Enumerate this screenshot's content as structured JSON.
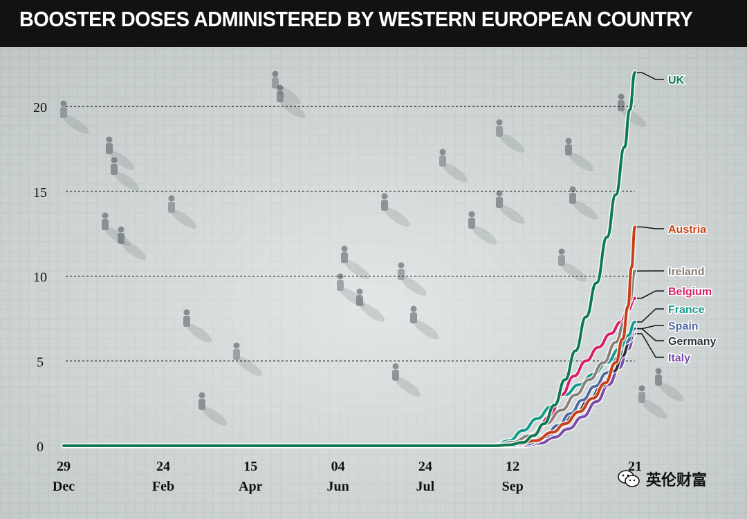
{
  "watermark": {
    "text": "英伦财富"
  },
  "chart_data": {
    "type": "line",
    "title": "BOOSTER DOSES ADMINISTERED BY WESTERN EUROPEAN COUNTRY",
    "xlabel": "",
    "ylabel": "",
    "ylim": [
      0,
      22
    ],
    "xlim": [
      "2020-12-29",
      "2021-11-21"
    ],
    "yticks": [
      0,
      5,
      10,
      15,
      20
    ],
    "xticks": [
      {
        "day": [
          "29"
        ],
        "label": "Dec",
        "date": "2020-12-29"
      },
      {
        "day": [
          "24"
        ],
        "label": "Feb",
        "date": "2021-02-24"
      },
      {
        "day": [
          "15"
        ],
        "label": "Apr",
        "date": "2021-04-15"
      },
      {
        "day": [
          "04"
        ],
        "label": "Jun",
        "date": "2021-06-04"
      },
      {
        "day": [
          "24"
        ],
        "label": "Jul",
        "date": "2021-07-24"
      },
      {
        "day": [
          "12"
        ],
        "label": "Sep",
        "date": "2021-09-12"
      },
      {
        "day": [
          "21"
        ],
        "label": "",
        "date": "2021-11-21"
      }
    ],
    "grid": "dotted horizontal",
    "legend": "inline labels at right end of lines",
    "series": [
      {
        "name": "UK",
        "color": "#0d7a52",
        "x": [
          "2020-12-29",
          "2021-09-01",
          "2021-09-10",
          "2021-09-18",
          "2021-09-24",
          "2021-09-30",
          "2021-10-06",
          "2021-10-12",
          "2021-10-18",
          "2021-10-24",
          "2021-10-30",
          "2021-11-05",
          "2021-11-10",
          "2021-11-15",
          "2021-11-18",
          "2021-11-21"
        ],
        "y": [
          0,
          0,
          0.05,
          0.2,
          0.6,
          1.3,
          2.4,
          3.9,
          5.6,
          7.6,
          9.6,
          12.3,
          14.8,
          17.6,
          19.8,
          22
        ]
      },
      {
        "name": "Austria",
        "color": "#c8401a",
        "x": [
          "2020-12-29",
          "2021-09-05",
          "2021-09-15",
          "2021-09-25",
          "2021-10-05",
          "2021-10-12",
          "2021-10-20",
          "2021-10-28",
          "2021-11-04",
          "2021-11-10",
          "2021-11-14",
          "2021-11-17",
          "2021-11-19",
          "2021-11-21"
        ],
        "y": [
          0,
          0,
          0.1,
          0.3,
          0.8,
          1.3,
          2.0,
          2.8,
          3.7,
          4.9,
          6.3,
          8.2,
          10.5,
          12.9
        ]
      },
      {
        "name": "Ireland",
        "color": "#8a7f7a",
        "x": [
          "2020-12-29",
          "2021-09-01",
          "2021-09-12",
          "2021-09-22",
          "2021-10-01",
          "2021-10-10",
          "2021-10-18",
          "2021-10-26",
          "2021-11-03",
          "2021-11-10",
          "2021-11-15",
          "2021-11-18",
          "2021-11-21"
        ],
        "y": [
          0,
          0,
          0.2,
          0.6,
          1.3,
          2.1,
          3.0,
          3.9,
          4.9,
          6.1,
          7.3,
          8.5,
          10.3
        ]
      },
      {
        "name": "Belgium",
        "color": "#d91e6a",
        "x": [
          "2020-12-29",
          "2021-09-05",
          "2021-09-15",
          "2021-09-25",
          "2021-10-03",
          "2021-10-10",
          "2021-10-17",
          "2021-10-24",
          "2021-10-31",
          "2021-11-07",
          "2021-11-13",
          "2021-11-17",
          "2021-11-21"
        ],
        "y": [
          0,
          0,
          0.15,
          0.7,
          1.7,
          3.0,
          4.1,
          5.0,
          5.8,
          6.6,
          7.3,
          8.0,
          8.7
        ]
      },
      {
        "name": "France",
        "color": "#149a8a",
        "x": [
          "2020-12-29",
          "2021-09-01",
          "2021-09-10",
          "2021-09-18",
          "2021-09-26",
          "2021-10-04",
          "2021-10-12",
          "2021-10-20",
          "2021-10-28",
          "2021-11-05",
          "2021-11-12",
          "2021-11-17",
          "2021-11-21"
        ],
        "y": [
          0,
          0,
          0.3,
          0.9,
          1.6,
          2.3,
          3.0,
          3.6,
          4.2,
          4.9,
          5.7,
          6.5,
          7.3
        ]
      },
      {
        "name": "Spain",
        "color": "#4f6aa3",
        "x": [
          "2020-12-29",
          "2021-09-10",
          "2021-09-20",
          "2021-09-30",
          "2021-10-08",
          "2021-10-15",
          "2021-10-22",
          "2021-10-29",
          "2021-11-05",
          "2021-11-11",
          "2021-11-16",
          "2021-11-21"
        ],
        "y": [
          0,
          0,
          0.1,
          0.5,
          1.2,
          1.9,
          2.7,
          3.5,
          4.3,
          5.2,
          6.1,
          6.9
        ]
      },
      {
        "name": "Germany",
        "color": "#2d3138",
        "x": [
          "2020-12-29",
          "2021-09-14",
          "2021-09-24",
          "2021-10-02",
          "2021-10-10",
          "2021-10-18",
          "2021-10-26",
          "2021-11-02",
          "2021-11-09",
          "2021-11-14",
          "2021-11-18",
          "2021-11-21"
        ],
        "y": [
          0,
          0,
          0.2,
          0.6,
          1.2,
          1.9,
          2.7,
          3.5,
          4.4,
          5.3,
          6.2,
          6.9
        ]
      },
      {
        "name": "Italy",
        "color": "#7a4ea8",
        "x": [
          "2020-12-29",
          "2021-09-18",
          "2021-09-28",
          "2021-10-06",
          "2021-10-14",
          "2021-10-22",
          "2021-10-30",
          "2021-11-06",
          "2021-11-12",
          "2021-11-17",
          "2021-11-21"
        ],
        "y": [
          0,
          0,
          0.15,
          0.5,
          1.0,
          1.7,
          2.6,
          3.6,
          4.6,
          5.7,
          6.6
        ]
      }
    ]
  }
}
